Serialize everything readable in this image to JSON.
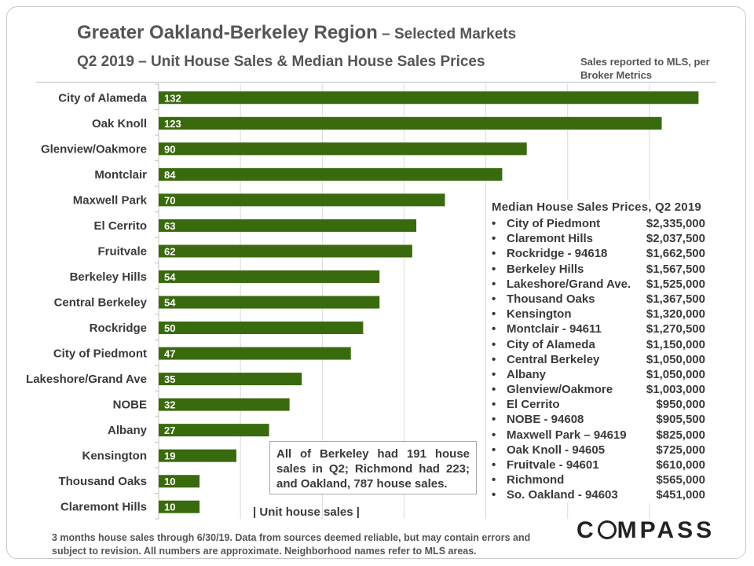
{
  "header": {
    "title": "Greater Oakland-Berkeley Region",
    "title_suffix": " – Selected Markets",
    "subtitle": "Q2 2019 – Unit House Sales & Median House Sales Prices",
    "source_note": "Sales reported to MLS, per Broker Metrics"
  },
  "chart_data": {
    "type": "bar",
    "orientation": "horizontal",
    "categories": [
      "City of Alameda",
      "Oak Knoll",
      "Glenview/Oakmore",
      "Montclair",
      "Maxwell Park",
      "El Cerrito",
      "Fruitvale",
      "Berkeley Hills",
      "Central Berkeley",
      "Rockridge",
      "City of Piedmont",
      "Lakeshore/Grand Ave",
      "NOBE",
      "Albany",
      "Kensington",
      "Thousand Oaks",
      "Claremont Hills"
    ],
    "values": [
      132,
      123,
      90,
      84,
      70,
      63,
      62,
      54,
      54,
      50,
      47,
      35,
      32,
      27,
      19,
      10,
      10
    ],
    "xlabel": "| Unit house sales |",
    "bar_color": "#3a6a0e",
    "grid": true,
    "xlim": [
      0,
      135
    ]
  },
  "median_prices": {
    "title": "Median House Sales Prices, Q2 2019",
    "items": [
      {
        "area": "City of Piedmont",
        "price": "$2,335,000"
      },
      {
        "area": "Claremont Hills",
        "price": "$2,037,500"
      },
      {
        "area": "Rockridge - 94618",
        "price": "$1,662,500"
      },
      {
        "area": "Berkeley Hills",
        "price": "$1,567,500"
      },
      {
        "area": "Lakeshore/Grand Ave.",
        "price": "$1,525,000"
      },
      {
        "area": "Thousand Oaks",
        "price": "$1,367,500"
      },
      {
        "area": "Kensington",
        "price": "$1,320,000"
      },
      {
        "area": "Montclair - 94611",
        "price": "$1,270,500"
      },
      {
        "area": "City of Alameda",
        "price": "$1,150,000"
      },
      {
        "area": "Central Berkeley",
        "price": "$1,050,000"
      },
      {
        "area": "Albany",
        "price": "$1,050,000"
      },
      {
        "area": "Glenview/Oakmore",
        "price": "$1,003,000"
      },
      {
        "area": "El Cerrito",
        "price": "$950,000"
      },
      {
        "area": "NOBE - 94608",
        "price": "$905,500"
      },
      {
        "area": "Maxwell Park – 94619",
        "price": "$825,000"
      },
      {
        "area": "Oak Knoll - 94605",
        "price": "$725,000"
      },
      {
        "area": "Fruitvale - 94601",
        "price": "$610,000"
      },
      {
        "area": "Richmond",
        "price": "$565,000"
      },
      {
        "area": "So. Oakland - 94603",
        "price": "$451,000"
      }
    ]
  },
  "callout": "All of Berkeley had 191 house sales in Q2; Richmond had 223; and Oakland, 787 house sales.",
  "footnote": "3 months house sales through 6/30/19. Data from sources deemed reliable, but may contain errors and subject to revision. All numbers are approximate. Neighborhood names refer to MLS areas.",
  "logo": {
    "left": "C",
    "right": "MPASS"
  }
}
